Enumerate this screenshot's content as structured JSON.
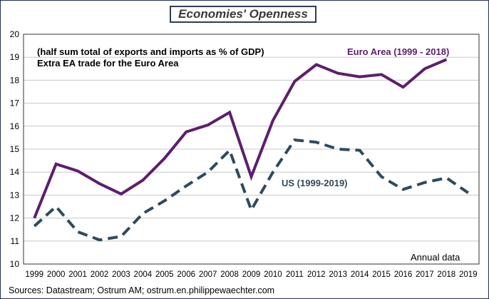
{
  "chart_data": {
    "type": "line",
    "title": "Economies' Openness",
    "subtitle_lines": [
      "(half sum total of exports and imports as % of GDP)",
      "Extra EA trade for the Euro Area"
    ],
    "note": "Annual data",
    "source": "Sources: Datastream;  Ostrum AM; ostrum.en.philippewaechter.com",
    "xlabel": "",
    "ylabel": "",
    "ylim": [
      10,
      20
    ],
    "yticks": [
      10,
      11,
      12,
      13,
      14,
      15,
      16,
      17,
      18,
      19,
      20
    ],
    "x": [
      "1999",
      "2000",
      "2001",
      "2002",
      "2003",
      "2004",
      "2005",
      "2006",
      "2007",
      "2008",
      "2009",
      "2010",
      "2011",
      "2012",
      "2013",
      "2014",
      "2015",
      "2016",
      "2017",
      "2018",
      "2019"
    ],
    "grid": true,
    "series": [
      {
        "name": "Euro Area (1999 - 2018)",
        "color": "#5b1f6e",
        "style": "solid",
        "values": [
          12.0,
          14.35,
          14.05,
          13.5,
          13.05,
          13.65,
          14.6,
          15.75,
          16.05,
          16.6,
          13.8,
          16.25,
          17.95,
          18.68,
          18.3,
          18.15,
          18.25,
          17.7,
          18.5,
          18.9,
          null
        ]
      },
      {
        "name": "US (1999-2019)",
        "color": "#2f4a5c",
        "style": "dashed",
        "values": [
          11.65,
          12.5,
          11.4,
          11.05,
          11.2,
          12.2,
          12.75,
          13.4,
          14.0,
          14.95,
          12.35,
          14.0,
          15.4,
          15.3,
          15.0,
          14.95,
          13.8,
          13.25,
          13.55,
          13.75,
          13.1
        ]
      }
    ]
  }
}
